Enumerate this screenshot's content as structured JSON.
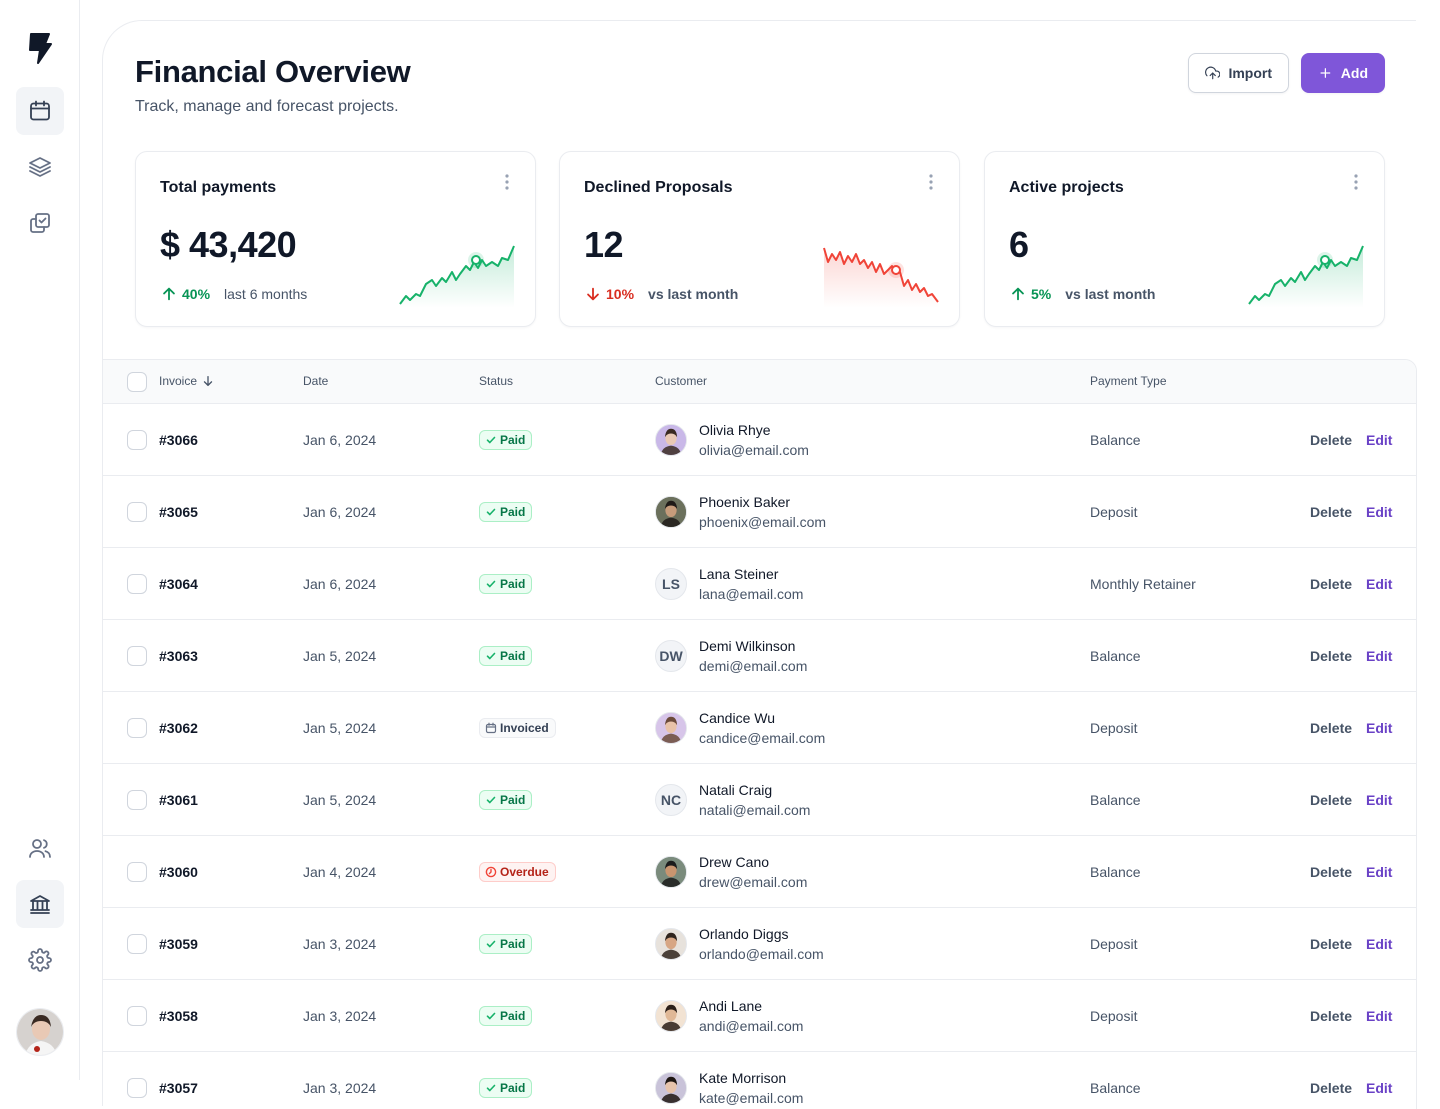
{
  "header": {
    "title": "Financial Overview",
    "subtitle": "Track, manage and forecast projects.",
    "import_label": "Import",
    "add_label": "Add"
  },
  "cards": [
    {
      "title": "Total payments",
      "value": "$ 43,420",
      "trend_pct": "40%",
      "trend_text": "last 6 months",
      "direction": "up"
    },
    {
      "title": "Declined Proposals",
      "value": "12",
      "trend_pct": "10%",
      "trend_text": "vs last month",
      "direction": "down"
    },
    {
      "title": "Active projects",
      "value": "6",
      "trend_pct": "5%",
      "trend_text": "vs last month",
      "direction": "up"
    }
  ],
  "table": {
    "headers": {
      "invoice": "Invoice",
      "date": "Date",
      "status": "Status",
      "customer": "Customer",
      "payment_type": "Payment Type"
    },
    "actions": {
      "delete": "Delete",
      "edit": "Edit"
    },
    "rows": [
      {
        "invoice": "#3066",
        "date": "Jan 6, 2024",
        "status": "Paid",
        "name": "Olivia Rhye",
        "email": "olivia@email.com",
        "payment": "Balance",
        "initials": ""
      },
      {
        "invoice": "#3065",
        "date": "Jan 6, 2024",
        "status": "Paid",
        "name": "Phoenix Baker",
        "email": "phoenix@email.com",
        "payment": "Deposit",
        "initials": ""
      },
      {
        "invoice": "#3064",
        "date": "Jan 6, 2024",
        "status": "Paid",
        "name": "Lana Steiner",
        "email": "lana@email.com",
        "payment": "Monthly Retainer",
        "initials": "LS"
      },
      {
        "invoice": "#3063",
        "date": "Jan 5, 2024",
        "status": "Paid",
        "name": "Demi Wilkinson",
        "email": "demi@email.com",
        "payment": "Balance",
        "initials": "DW"
      },
      {
        "invoice": "#3062",
        "date": "Jan 5, 2024",
        "status": "Invoiced",
        "name": "Candice Wu",
        "email": "candice@email.com",
        "payment": "Deposit",
        "initials": ""
      },
      {
        "invoice": "#3061",
        "date": "Jan 5, 2024",
        "status": "Paid",
        "name": "Natali Craig",
        "email": "natali@email.com",
        "payment": "Balance",
        "initials": "NC"
      },
      {
        "invoice": "#3060",
        "date": "Jan 4, 2024",
        "status": "Overdue",
        "name": "Drew Cano",
        "email": "drew@email.com",
        "payment": "Balance",
        "initials": ""
      },
      {
        "invoice": "#3059",
        "date": "Jan 3, 2024",
        "status": "Paid",
        "name": "Orlando Diggs",
        "email": "orlando@email.com",
        "payment": "Deposit",
        "initials": ""
      },
      {
        "invoice": "#3058",
        "date": "Jan 3, 2024",
        "status": "Paid",
        "name": "Andi Lane",
        "email": "andi@email.com",
        "payment": "Deposit",
        "initials": ""
      },
      {
        "invoice": "#3057",
        "date": "Jan 3, 2024",
        "status": "Paid",
        "name": "Kate Morrison",
        "email": "kate@email.com",
        "payment": "Balance",
        "initials": ""
      }
    ]
  },
  "colors": {
    "accent": "#7f56d9",
    "success": "#079455",
    "danger": "#d92d20",
    "border": "#eaecf0"
  },
  "icons": {
    "sidebar_top": [
      "logo-bolt-icon",
      "calendar-icon",
      "layers-icon",
      "check-copy-icon"
    ],
    "sidebar_bottom": [
      "users-icon",
      "bank-icon",
      "settings-icon"
    ]
  }
}
